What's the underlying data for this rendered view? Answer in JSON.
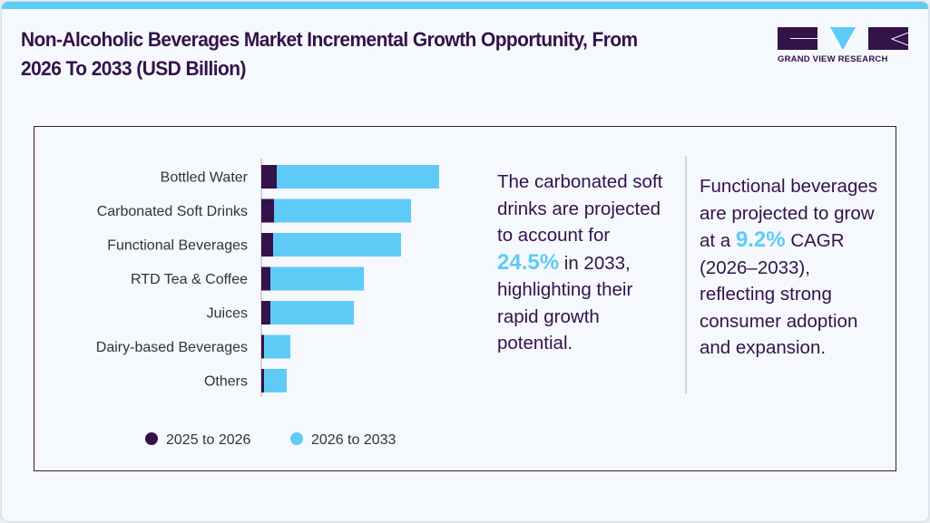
{
  "title": "Non-Alcoholic Beverages Market Incremental Growth Opportunity, From 2026 To 2033 (USD Billion)",
  "logo": {
    "text": "GRAND VIEW RESEARCH"
  },
  "colors": {
    "dark": "#34124a",
    "accent": "#5ecbf7"
  },
  "chart_data": {
    "type": "bar",
    "orientation": "horizontal",
    "stacked": true,
    "categories": [
      "Bottled Water",
      "Carbonated Soft Drinks",
      "Functional Beverages",
      "RTD Tea & Coffee",
      "Juices",
      "Dairy-based Beverages",
      "Others"
    ],
    "series": [
      {
        "name": "2025 to 2026",
        "color": "#34124a",
        "values": [
          17,
          14,
          13,
          10,
          10,
          3,
          3
        ]
      },
      {
        "name": "2026 to 2033",
        "color": "#5ecbf7",
        "values": [
          179,
          151,
          141,
          103,
          92,
          29,
          25
        ]
      }
    ],
    "xlim": [
      0,
      200
    ],
    "axis_labels_shown": false,
    "grid": false,
    "legend": "bottom-left"
  },
  "notes": {
    "left": {
      "before": "The carbonated soft drinks are projected to account for",
      "highlight": "24.5%",
      "after": "in 2033, highlighting their rapid growth potential."
    },
    "right": {
      "before": "Functional beverages are projected to grow at a",
      "highlight": "9.2%",
      "after": "CAGR (2026–2033), reflecting strong consumer adoption and expansion."
    }
  }
}
